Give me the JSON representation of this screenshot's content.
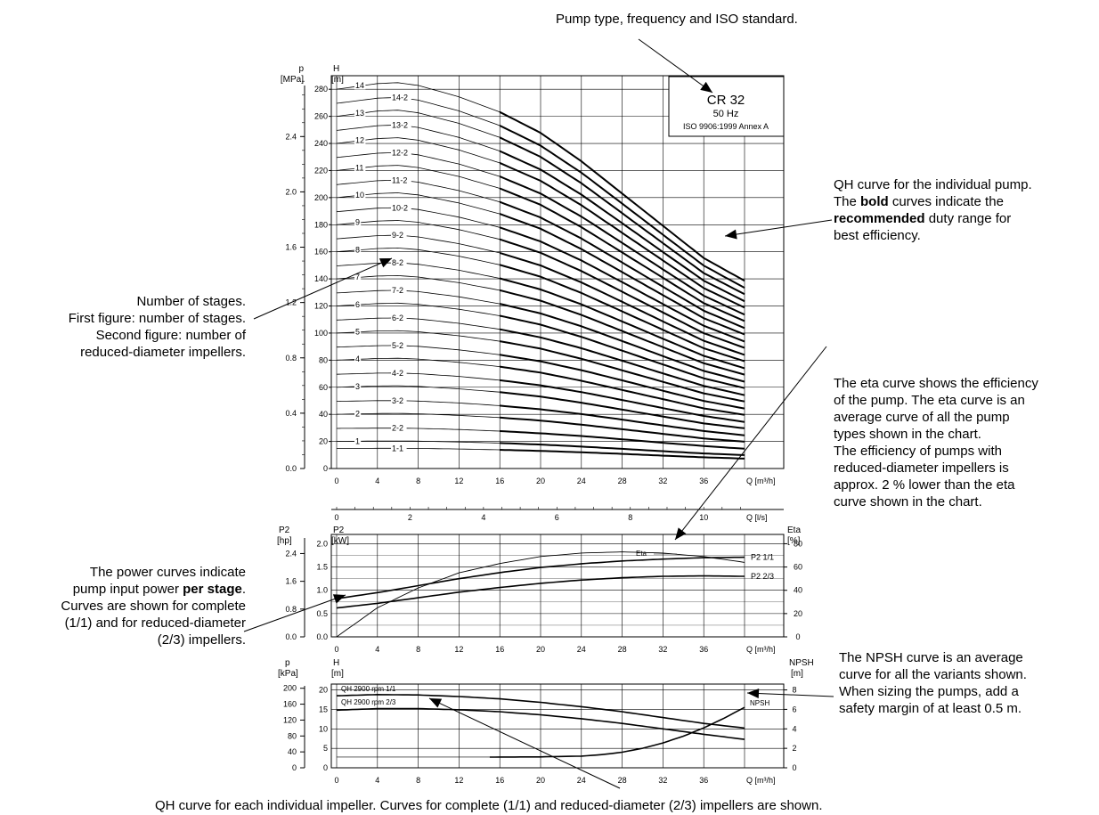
{
  "annotations": {
    "top": "Pump type, frequency and ISO standard.",
    "qh_curve": {
      "l1": "QH curve for the individual pump.",
      "l2a": "The ",
      "l2b": "bold",
      "l2c": " curves indicate the",
      "l3a": "recommended",
      "l3b": " duty range for",
      "l4": "best efficiency."
    },
    "stages": [
      "Number of stages.",
      "First figure: number of stages.",
      "Second figure: number of",
      "reduced-diameter impellers."
    ],
    "eta": [
      "The eta curve shows the efficiency",
      "of the pump. The eta curve is an",
      "average curve of all the pump",
      "types shown in the chart.",
      "The efficiency of pumps with",
      "reduced-diameter impellers is",
      "approx. 2 % lower than the eta",
      "curve shown in the chart."
    ],
    "power": {
      "l1": "The power curves indicate",
      "l2a": "pump input power ",
      "l2b": "per stage",
      "l2c": ".",
      "l3": "Curves are shown for complete",
      "l4": "(1/1) and for reduced-diameter",
      "l5": "(2/3) impellers."
    },
    "npsh": [
      "The NPSH curve is an average",
      "curve for all the variants shown.",
      "When sizing the pumps, add a",
      "safety margin of at least 0.5 m."
    ],
    "bottom": "QH curve for each individual impeller. Curves for complete (1/1) and reduced-diameter (2/3) impellers are shown."
  },
  "chart_data": [
    {
      "type": "line",
      "id": "qh_multistage",
      "infobox": {
        "model": "CR 32",
        "frequency": "50 Hz",
        "standard": "ISO 9906:1999 Annex A"
      },
      "left_axis_label": [
        "p",
        "[MPa]"
      ],
      "yaxis_label": [
        "H",
        "[m]"
      ],
      "xlabel": "Q [m³/h]",
      "xlim": [
        0,
        40
      ],
      "x_ticks": [
        0,
        4,
        8,
        12,
        16,
        20,
        24,
        28,
        32,
        36
      ],
      "ylim": [
        0,
        290
      ],
      "y_ticks": [
        0,
        20,
        40,
        60,
        80,
        100,
        120,
        140,
        160,
        180,
        200,
        220,
        240,
        260,
        280
      ],
      "p_ticks": [
        "0.0",
        "0.4",
        "0.8",
        "1.2",
        "1.6",
        "2.0",
        "2.4"
      ],
      "per_stage_full": {
        "x": [
          0,
          4,
          6,
          8,
          12,
          16,
          20,
          24,
          28,
          32,
          36,
          40
        ],
        "H": [
          20.0,
          20.3,
          20.35,
          20.2,
          19.6,
          18.8,
          17.7,
          16.2,
          14.5,
          12.8,
          11.1,
          9.9
        ]
      },
      "per_stage_reduced": {
        "x": [
          0,
          4,
          6,
          8,
          12,
          16,
          20,
          24,
          28,
          32,
          36,
          40
        ],
        "H": [
          14.8,
          14.9,
          14.9,
          14.8,
          14.4,
          13.8,
          13.0,
          12.0,
          10.8,
          9.5,
          8.3,
          7.3
        ]
      },
      "variants": [
        {
          "label": "14",
          "stages": 14,
          "reduced": 0
        },
        {
          "label": "14-2",
          "stages": 14,
          "reduced": 2
        },
        {
          "label": "13",
          "stages": 13,
          "reduced": 0
        },
        {
          "label": "13-2",
          "stages": 13,
          "reduced": 2
        },
        {
          "label": "12",
          "stages": 12,
          "reduced": 0
        },
        {
          "label": "12-2",
          "stages": 12,
          "reduced": 2
        },
        {
          "label": "11",
          "stages": 11,
          "reduced": 0
        },
        {
          "label": "11-2",
          "stages": 11,
          "reduced": 2
        },
        {
          "label": "10",
          "stages": 10,
          "reduced": 0
        },
        {
          "label": "10-2",
          "stages": 10,
          "reduced": 2
        },
        {
          "label": "9",
          "stages": 9,
          "reduced": 0
        },
        {
          "label": "9-2",
          "stages": 9,
          "reduced": 2
        },
        {
          "label": "8",
          "stages": 8,
          "reduced": 0
        },
        {
          "label": "8-2",
          "stages": 8,
          "reduced": 2
        },
        {
          "label": "7",
          "stages": 7,
          "reduced": 0
        },
        {
          "label": "7-2",
          "stages": 7,
          "reduced": 2
        },
        {
          "label": "6",
          "stages": 6,
          "reduced": 0
        },
        {
          "label": "6-2",
          "stages": 6,
          "reduced": 2
        },
        {
          "label": "5",
          "stages": 5,
          "reduced": 0
        },
        {
          "label": "5-2",
          "stages": 5,
          "reduced": 2
        },
        {
          "label": "4",
          "stages": 4,
          "reduced": 0
        },
        {
          "label": "4-2",
          "stages": 4,
          "reduced": 2
        },
        {
          "label": "3",
          "stages": 3,
          "reduced": 0
        },
        {
          "label": "3-2",
          "stages": 3,
          "reduced": 2
        },
        {
          "label": "2",
          "stages": 2,
          "reduced": 0
        },
        {
          "label": "2-2",
          "stages": 2,
          "reduced": 2
        },
        {
          "label": "1",
          "stages": 1,
          "reduced": 0
        },
        {
          "label": "1-1",
          "stages": 1,
          "reduced": 1
        }
      ],
      "recommended_range": [
        16,
        40
      ]
    },
    {
      "type": "line",
      "id": "flow_ls_axis",
      "xlabel": "Q [l/s]",
      "x_ticks": [
        0,
        2,
        4,
        6,
        8,
        10
      ],
      "xlim": [
        0,
        11.11
      ]
    },
    {
      "type": "line",
      "id": "power_eta",
      "left_axis_label": [
        "P2",
        "[hp]"
      ],
      "yaxis_label": [
        "P2",
        "[kW]"
      ],
      "right_axis_label": [
        "Eta",
        "[%]"
      ],
      "xlabel": "Q [m³/h]",
      "xlim": [
        0,
        40
      ],
      "x_ticks": [
        0,
        4,
        8,
        12,
        16,
        20,
        24,
        28,
        32,
        36
      ],
      "ylim": [
        0,
        2.2
      ],
      "y_ticks": [
        "0.0",
        "0.5",
        "1.0",
        "1.5",
        "2.0"
      ],
      "hp_ticks": [
        "0.0",
        "0.8",
        "1.6",
        "2.4"
      ],
      "eta_ticks": [
        "0",
        "20",
        "40",
        "60",
        "80"
      ],
      "series": [
        {
          "name": "P2 1/1",
          "x": [
            0,
            4,
            8,
            12,
            16,
            20,
            24,
            28,
            32,
            36,
            40
          ],
          "values": [
            0.82,
            0.95,
            1.1,
            1.25,
            1.38,
            1.49,
            1.57,
            1.63,
            1.67,
            1.7,
            1.71
          ]
        },
        {
          "name": "P2 2/3",
          "x": [
            0,
            4,
            8,
            12,
            16,
            20,
            24,
            28,
            32,
            36,
            40
          ],
          "values": [
            0.62,
            0.72,
            0.84,
            0.96,
            1.06,
            1.15,
            1.22,
            1.27,
            1.3,
            1.31,
            1.3
          ]
        },
        {
          "name": "Eta",
          "x": [
            0,
            4,
            8,
            12,
            16,
            20,
            24,
            28,
            32,
            36,
            40
          ],
          "values_pct": [
            0,
            25,
            42,
            55,
            63,
            69,
            72,
            73,
            72,
            69,
            64
          ]
        }
      ]
    },
    {
      "type": "line",
      "id": "npsh",
      "left_axis_label": [
        "p",
        "[kPa]"
      ],
      "yaxis_label": [
        "H",
        "[m]"
      ],
      "right_axis_label": [
        "NPSH",
        "[m]"
      ],
      "xlabel": "Q [m³/h]",
      "xlim": [
        0,
        40
      ],
      "x_ticks": [
        0,
        4,
        8,
        12,
        16,
        20,
        24,
        28,
        32,
        36
      ],
      "ylim": [
        0,
        21.5
      ],
      "y_ticks": [
        "0",
        "5",
        "10",
        "15",
        "20"
      ],
      "kpa_ticks": [
        "0",
        "40",
        "80",
        "120",
        "160",
        "200"
      ],
      "npsh_ticks": [
        "0",
        "2",
        "4",
        "6",
        "8"
      ],
      "series": [
        {
          "name": "QH 2900 rpm 1/1",
          "x": [
            0,
            4,
            8,
            12,
            16,
            20,
            24,
            28,
            32,
            36,
            40
          ],
          "values": [
            18.5,
            18.8,
            18.7,
            18.3,
            17.7,
            16.8,
            15.7,
            14.4,
            12.9,
            11.4,
            10.2
          ]
        },
        {
          "name": "QH 2900 rpm 2/3",
          "x": [
            0,
            4,
            8,
            12,
            16,
            20,
            24,
            28,
            32,
            36,
            40
          ],
          "values": [
            14.8,
            15.2,
            15.2,
            14.9,
            14.4,
            13.6,
            12.6,
            11.4,
            10.0,
            8.6,
            7.3
          ]
        },
        {
          "name": "NPSH",
          "x": [
            15,
            20,
            24,
            26,
            28,
            30,
            32,
            34,
            36,
            38,
            40
          ],
          "values_m": [
            1.1,
            1.12,
            1.2,
            1.35,
            1.6,
            2.0,
            2.55,
            3.25,
            4.1,
            5.1,
            6.2
          ]
        }
      ]
    }
  ]
}
